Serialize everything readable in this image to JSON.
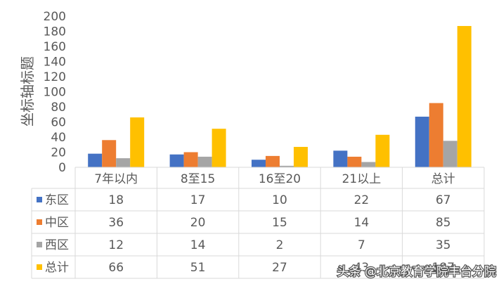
{
  "chart_data": {
    "type": "bar",
    "ylabel": "坐标轴标题",
    "ylim": [
      0,
      200
    ],
    "yticks": [
      0,
      20,
      40,
      60,
      80,
      100,
      120,
      140,
      160,
      180,
      200
    ],
    "ytick_labels": [
      "0",
      "20",
      "40",
      "60",
      "80",
      "100",
      "120",
      "140",
      "160",
      "180",
      "200"
    ],
    "grid": false,
    "legend": "data-table",
    "categories": [
      "7年以内",
      "8至15",
      "16至20",
      "21以上",
      "总计"
    ],
    "series": [
      {
        "name": "东区",
        "color": "#4472C4",
        "values": [
          18,
          17,
          10,
          22,
          67
        ],
        "labels": [
          "18",
          "17",
          "10",
          "22",
          "67"
        ]
      },
      {
        "name": "中区",
        "color": "#ED7D31",
        "values": [
          36,
          20,
          15,
          14,
          85
        ],
        "labels": [
          "36",
          "20",
          "15",
          "14",
          "85"
        ]
      },
      {
        "name": "西区",
        "color": "#A5A5A5",
        "values": [
          12,
          14,
          2,
          7,
          35
        ],
        "labels": [
          "12",
          "14",
          "2",
          "7",
          "35"
        ]
      },
      {
        "name": "总计",
        "color": "#FFC000",
        "values": [
          66,
          51,
          27,
          43,
          187
        ],
        "labels": [
          "66",
          "51",
          "27",
          "43",
          "187"
        ]
      }
    ]
  },
  "watermark": "头条 @北京教育学院丰台分院"
}
